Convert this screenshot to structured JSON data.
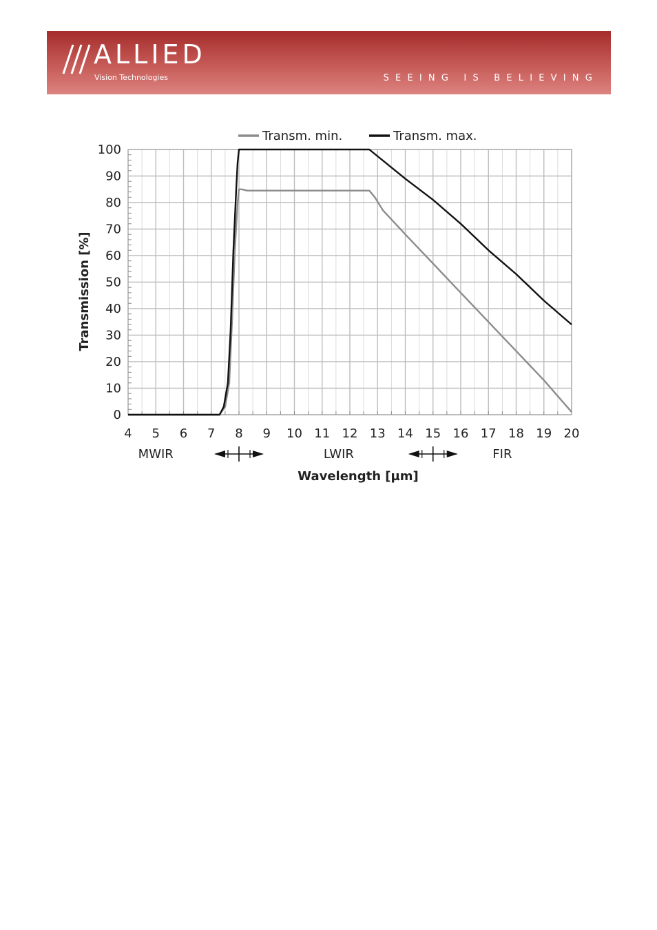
{
  "header": {
    "brand": "ALLIED",
    "sub": "Vision Technologies",
    "tagline": "SEEING IS BELIEVING",
    "color_top": "#a52d2c",
    "color_bottom": "#dc8380"
  },
  "chart_data": {
    "type": "line",
    "title": "",
    "xlabel": "Wavelength [µm]",
    "ylabel": "Transmission [%]",
    "xlim": [
      4,
      20
    ],
    "ylim": [
      0,
      100
    ],
    "xticks": [
      4,
      5,
      6,
      7,
      8,
      9,
      10,
      11,
      12,
      13,
      14,
      15,
      16,
      17,
      18,
      19,
      20
    ],
    "yticks": [
      0,
      10,
      20,
      30,
      40,
      50,
      60,
      70,
      80,
      90,
      100
    ],
    "grid": true,
    "legend_position": "top",
    "series": [
      {
        "name": "Transm. min.",
        "color": "#8c8c8c",
        "x": [
          4,
          7.0,
          7.3,
          7.5,
          7.65,
          7.75,
          7.85,
          7.95,
          8.0,
          8.1,
          8.3,
          12.5,
          12.7,
          12.9,
          13.2,
          14.0,
          15.0,
          16.0,
          17.0,
          18.0,
          19.0,
          20.0
        ],
        "y": [
          0,
          0,
          0,
          3,
          12,
          35,
          62,
          80,
          85,
          85,
          84.5,
          84.5,
          84.5,
          82,
          77,
          68,
          57,
          46,
          35,
          24,
          13,
          1
        ]
      },
      {
        "name": "Transm. max.",
        "color": "#111111",
        "x": [
          4,
          7.0,
          7.3,
          7.45,
          7.6,
          7.7,
          7.8,
          7.9,
          7.95,
          8.0,
          12.7,
          14.0,
          15.0,
          16.0,
          17.0,
          18.0,
          19.0,
          20.0
        ],
        "y": [
          0,
          0,
          0,
          3,
          12,
          32,
          62,
          85,
          95,
          100,
          100,
          89,
          81,
          72,
          62,
          53,
          43,
          34
        ]
      }
    ],
    "annotations": {
      "bands": [
        {
          "label": "MWIR",
          "x": 5.0
        },
        {
          "label": "LWIR",
          "x": 11.6
        },
        {
          "label": "FIR",
          "x": 17.5
        }
      ],
      "band_boundaries": [
        8,
        15
      ]
    }
  }
}
